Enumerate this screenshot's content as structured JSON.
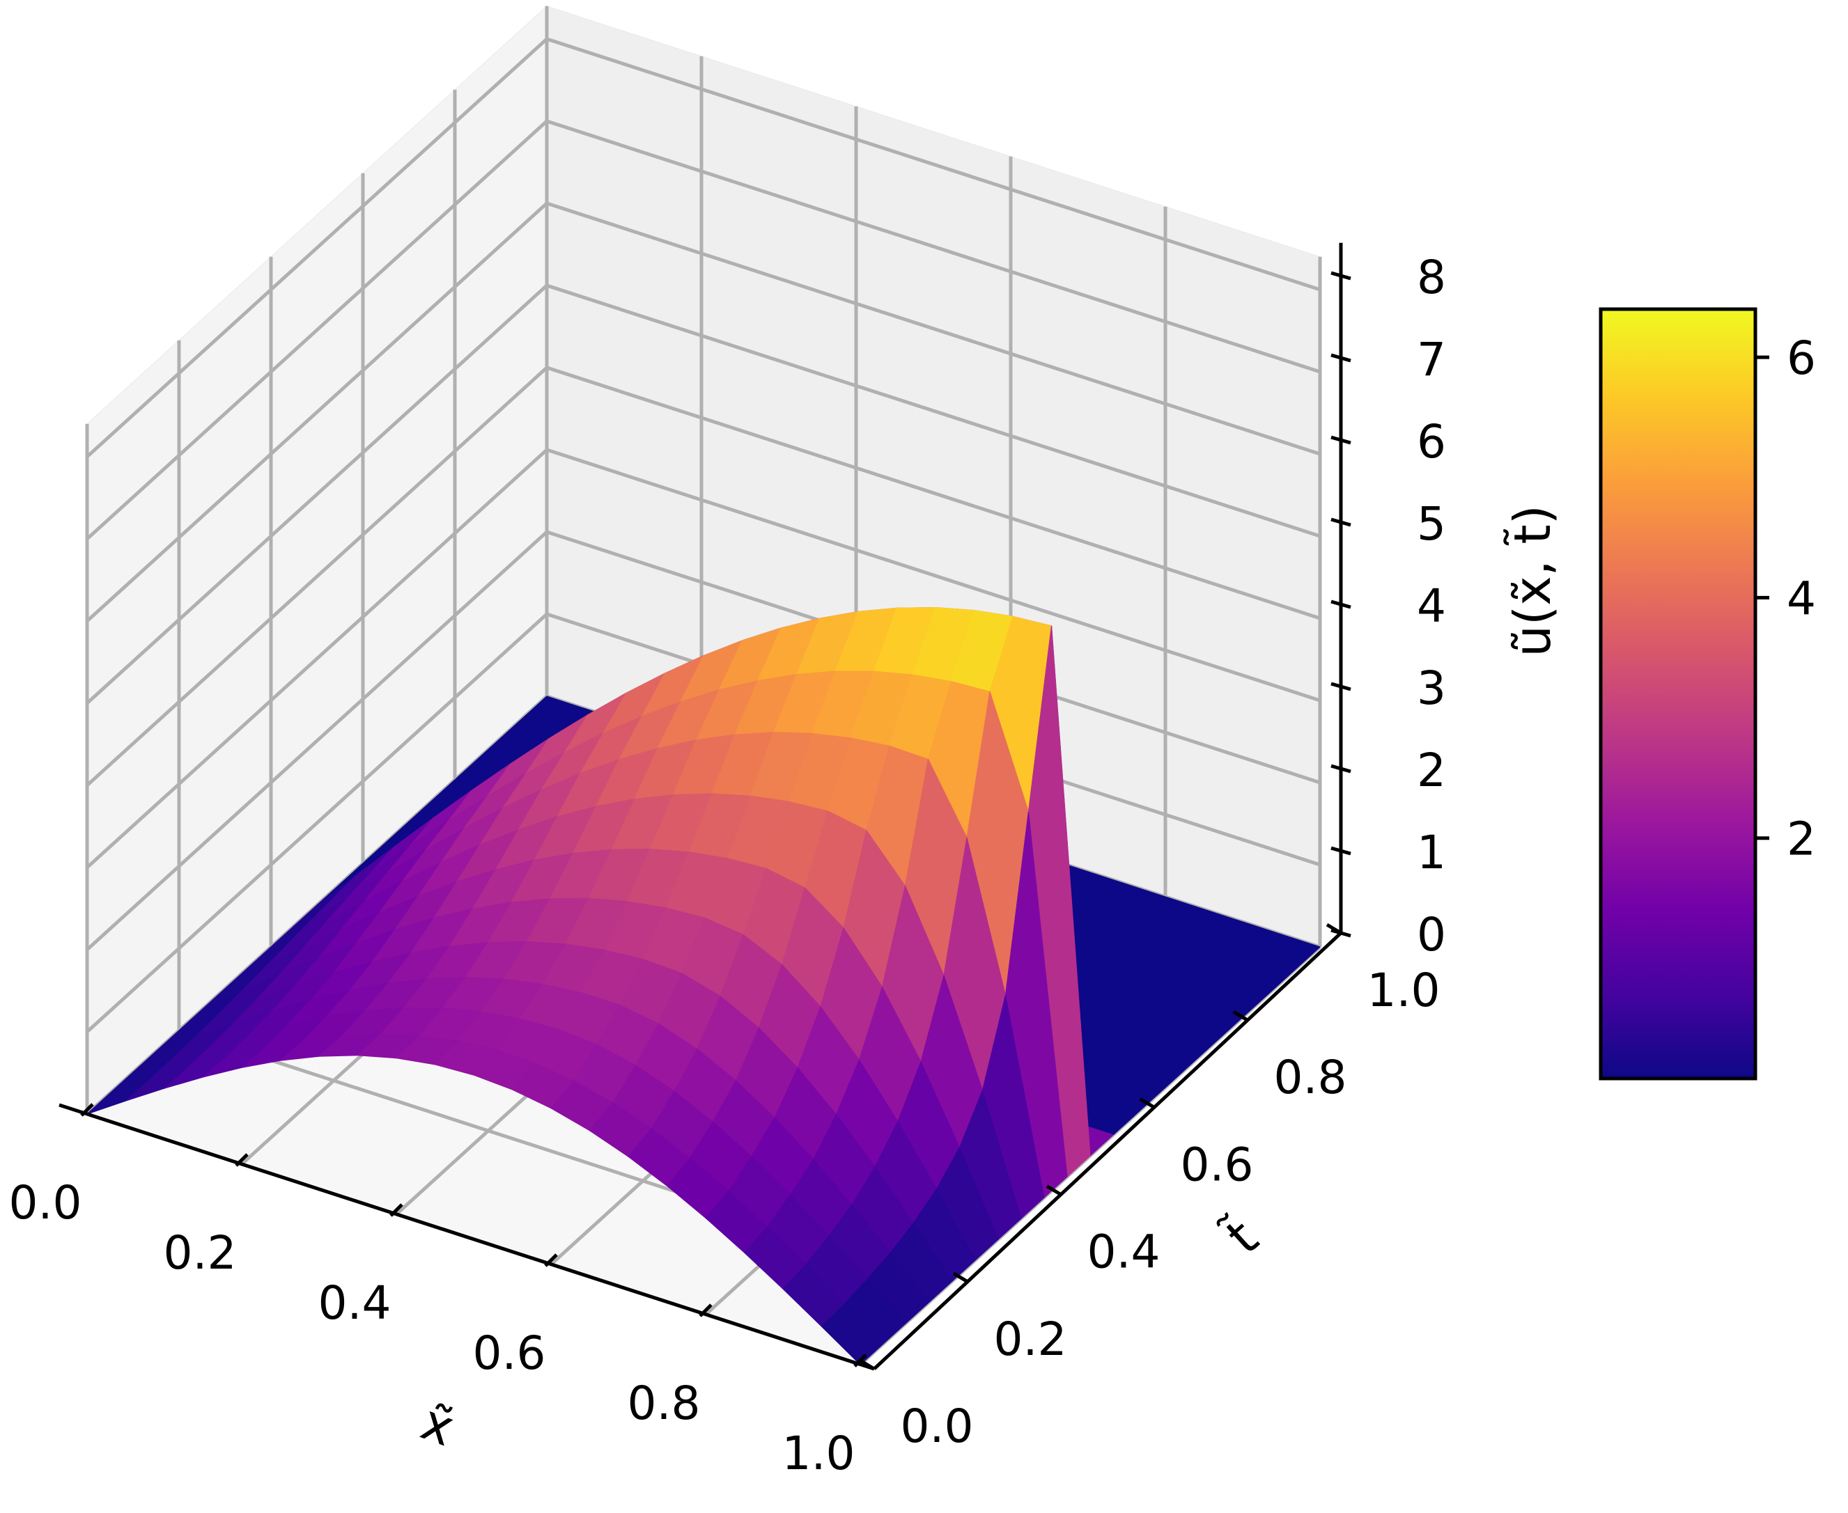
{
  "chart_data": {
    "type": "surface3d",
    "colormap": "plasma",
    "colormap_stops": [
      "#0d0887",
      "#46039f",
      "#7201a8",
      "#9c179e",
      "#bd3786",
      "#d8576b",
      "#ed7953",
      "#fb9f3a",
      "#fdca26",
      "#f0f921"
    ],
    "xlabel": "x̃",
    "ylabel": "t̃",
    "zlabel": "ũ(x̃, t̃)",
    "x_ticks": [
      "0.0",
      "0.2",
      "0.4",
      "0.6",
      "0.8",
      "1.0"
    ],
    "t_ticks": [
      "0.0",
      "0.2",
      "0.4",
      "0.6",
      "0.8",
      "1.0"
    ],
    "z_ticks": [
      "0",
      "1",
      "2",
      "3",
      "4",
      "5",
      "6",
      "7",
      "8"
    ],
    "xlim": [
      0,
      1
    ],
    "tlim": [
      0,
      1
    ],
    "zlim": [
      0,
      8.4
    ],
    "grid": true,
    "surface": {
      "x": [
        0.0,
        0.05,
        0.1,
        0.15,
        0.2,
        0.25,
        0.3,
        0.35,
        0.4,
        0.45,
        0.5,
        0.55,
        0.6,
        0.65,
        0.7,
        0.75,
        0.8,
        0.85,
        0.9,
        0.95,
        1.0
      ],
      "t": [
        0.0,
        0.05,
        0.1,
        0.15,
        0.2,
        0.25,
        0.3,
        0.35,
        0.4,
        0.45,
        0.5,
        0.55,
        0.6,
        0.65,
        0.7,
        0.75,
        0.8,
        0.85,
        0.9,
        0.95,
        1.0
      ],
      "peak_u": [
        2.0,
        2.05,
        2.2,
        2.4,
        2.7,
        3.1,
        3.6,
        4.2,
        4.9,
        5.6,
        6.3
      ],
      "peak_position": [
        0.5,
        0.52,
        0.55,
        0.58,
        0.62,
        0.66,
        0.71,
        0.77,
        0.84,
        0.91,
        0.97
      ],
      "zero_after_t": 0.5
    },
    "colorbar": {
      "ticks": [
        "2",
        "4",
        "6"
      ],
      "range": [
        0.0,
        6.4
      ]
    }
  }
}
